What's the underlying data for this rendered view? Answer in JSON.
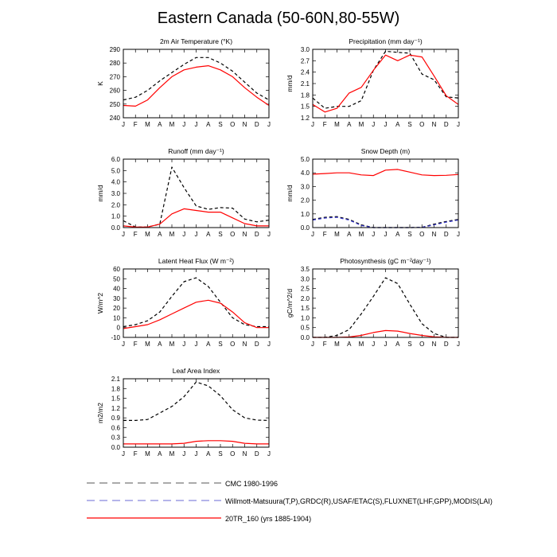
{
  "title": "Eastern Canada (50-60N,80-55W)",
  "colors": {
    "cmc": "#000000",
    "obs": "#3333cc",
    "model": "#ff0000"
  },
  "legend": [
    {
      "label": "CMC 1980-1996",
      "color": "#777777",
      "dash": "dash"
    },
    {
      "label": "Willmott-Matsuura(T,P),GRDC(R),USAF/ETAC(S),FLUXNET(LHF,GPP),MODIS(LAI)",
      "color": "#8888dd",
      "dash": "dash"
    },
    {
      "label": "20TR_160 (yrs 1885-1904)",
      "color": "#ff0000",
      "dash": "solid"
    }
  ],
  "chart_data": [
    {
      "type": "line",
      "title": "2m Air Temperature (°K)",
      "ylabel": "K",
      "categories": [
        "J",
        "F",
        "M",
        "A",
        "M",
        "J",
        "J",
        "A",
        "S",
        "O",
        "N",
        "D",
        "J"
      ],
      "ylim": [
        240,
        290
      ],
      "yticks": [
        240,
        250,
        260,
        270,
        280,
        290
      ],
      "ytick_labels": [
        "240",
        "250",
        "260",
        "270",
        "280",
        "290"
      ],
      "series": [
        {
          "key": "cmc",
          "values": [
            253,
            255,
            260,
            267,
            273,
            279,
            284,
            284,
            280,
            274,
            266,
            258,
            253
          ]
        },
        {
          "key": "model",
          "values": [
            249,
            248.5,
            253,
            262,
            270,
            275,
            277,
            278,
            275,
            270,
            262,
            255,
            249
          ]
        }
      ]
    },
    {
      "type": "line",
      "title": "Precipitation (mm day⁻¹)",
      "ylabel": "mm/d",
      "categories": [
        "J",
        "F",
        "M",
        "A",
        "M",
        "J",
        "J",
        "A",
        "S",
        "O",
        "N",
        "D",
        "J"
      ],
      "ylim": [
        1.2,
        3.0
      ],
      "yticks": [
        1.2,
        1.5,
        1.8,
        2.1,
        2.4,
        2.7,
        3.0
      ],
      "ytick_labels": [
        "1.2",
        "1.5",
        "1.8",
        "2.1",
        "2.4",
        "2.7",
        "3.0"
      ],
      "series": [
        {
          "key": "cmc",
          "values": [
            1.72,
            1.45,
            1.5,
            1.5,
            1.65,
            2.45,
            2.95,
            2.92,
            2.9,
            2.35,
            2.2,
            1.75,
            1.72
          ]
        },
        {
          "key": "model",
          "values": [
            1.55,
            1.35,
            1.45,
            1.85,
            2.0,
            2.45,
            2.85,
            2.7,
            2.85,
            2.8,
            2.3,
            1.78,
            1.55
          ]
        }
      ]
    },
    {
      "type": "line",
      "title": "Runoff (mm day⁻¹)",
      "ylabel": "mm/d",
      "categories": [
        "J",
        "F",
        "M",
        "A",
        "M",
        "J",
        "J",
        "A",
        "S",
        "O",
        "N",
        "D",
        "J"
      ],
      "ylim": [
        0,
        6
      ],
      "yticks": [
        0,
        1,
        2,
        3,
        4,
        5,
        6
      ],
      "ytick_labels": [
        "0.0",
        "1.0",
        "2.0",
        "3.0",
        "4.0",
        "5.0",
        "6.0"
      ],
      "series": [
        {
          "key": "cmc",
          "values": [
            0.6,
            0.05,
            0.05,
            0.3,
            5.3,
            3.5,
            1.9,
            1.6,
            1.75,
            1.7,
            0.75,
            0.5,
            0.65
          ]
        },
        {
          "key": "model",
          "values": [
            0.15,
            0.05,
            0.05,
            0.3,
            1.2,
            1.65,
            1.5,
            1.35,
            1.35,
            0.85,
            0.35,
            0.15,
            0.15
          ]
        }
      ]
    },
    {
      "type": "line",
      "title": "Snow Depth (m)",
      "ylabel": "mm/d",
      "categories": [
        "J",
        "F",
        "M",
        "A",
        "M",
        "J",
        "J",
        "A",
        "S",
        "O",
        "N",
        "D",
        "J"
      ],
      "ylim": [
        0,
        5
      ],
      "yticks": [
        0,
        1,
        2,
        3,
        4,
        5
      ],
      "ytick_labels": [
        "0.0",
        "1.0",
        "2.0",
        "3.0",
        "4.0",
        "5.0"
      ],
      "series": [
        {
          "key": "cmc",
          "values": [
            0.6,
            0.75,
            0.8,
            0.6,
            0.2,
            0,
            0,
            0,
            0,
            0.02,
            0.25,
            0.45,
            0.6
          ]
        },
        {
          "key": "obs",
          "values": [
            0.55,
            0.7,
            0.75,
            0.55,
            0.15,
            0,
            0,
            0,
            0,
            0.02,
            0.2,
            0.4,
            0.55
          ]
        },
        {
          "key": "model",
          "values": [
            3.9,
            3.95,
            4.0,
            4.0,
            3.85,
            3.8,
            4.2,
            4.25,
            4.05,
            3.85,
            3.8,
            3.82,
            3.88
          ]
        }
      ]
    },
    {
      "type": "line",
      "title": "Latent Heat Flux (W m⁻²)",
      "ylabel": "W/m^2",
      "categories": [
        "J",
        "F",
        "M",
        "A",
        "M",
        "J",
        "J",
        "A",
        "S",
        "O",
        "N",
        "D",
        "J"
      ],
      "ylim": [
        -10,
        60
      ],
      "yticks": [
        -10,
        0,
        10,
        20,
        30,
        40,
        50,
        60
      ],
      "ytick_labels": [
        "-10",
        "0",
        "10",
        "20",
        "30",
        "40",
        "50",
        "60"
      ],
      "series": [
        {
          "key": "cmc",
          "values": [
            1,
            3,
            7,
            16,
            32,
            47,
            51,
            42,
            26,
            10,
            3,
            1,
            1
          ]
        },
        {
          "key": "model",
          "values": [
            -1,
            1,
            3,
            8,
            14,
            20,
            26,
            28,
            25,
            16,
            5,
            0,
            0
          ]
        }
      ]
    },
    {
      "type": "line",
      "title": "Photosynthesis (gC m⁻²day⁻¹)",
      "ylabel": "gC/m^2/d",
      "categories": [
        "J",
        "F",
        "M",
        "A",
        "M",
        "J",
        "J",
        "A",
        "S",
        "O",
        "N",
        "D",
        "J"
      ],
      "ylim": [
        0,
        3.5
      ],
      "yticks": [
        0,
        0.5,
        1.0,
        1.5,
        2.0,
        2.5,
        3.0,
        3.5
      ],
      "ytick_labels": [
        "0.0",
        "0.5",
        "1.0",
        "1.5",
        "2.0",
        "2.5",
        "3.0",
        "3.5"
      ],
      "series": [
        {
          "key": "cmc",
          "values": [
            0,
            0,
            0.1,
            0.4,
            1.2,
            2.1,
            3.05,
            2.75,
            1.7,
            0.7,
            0.2,
            0,
            0
          ]
        },
        {
          "key": "model",
          "values": [
            0,
            0,
            0,
            0.02,
            0.1,
            0.25,
            0.35,
            0.32,
            0.2,
            0.1,
            0.03,
            0,
            0
          ]
        }
      ]
    },
    {
      "type": "line",
      "title": "Leaf Area Index",
      "ylabel": "m2/m2",
      "categories": [
        "J",
        "F",
        "M",
        "A",
        "M",
        "J",
        "J",
        "A",
        "S",
        "O",
        "N",
        "D",
        "J"
      ],
      "ylim": [
        0,
        2.1
      ],
      "yticks": [
        0,
        0.3,
        0.6,
        0.9,
        1.2,
        1.5,
        1.8,
        2.1
      ],
      "ytick_labels": [
        "0.0",
        "0.3",
        "0.6",
        "0.9",
        "1.2",
        "1.5",
        "1.8",
        "2.1"
      ],
      "series": [
        {
          "key": "cmc",
          "values": [
            0.82,
            0.82,
            0.85,
            1.05,
            1.25,
            1.55,
            2.0,
            1.88,
            1.58,
            1.15,
            0.9,
            0.83,
            0.82
          ]
        },
        {
          "key": "model",
          "values": [
            0.1,
            0.1,
            0.1,
            0.1,
            0.1,
            0.12,
            0.18,
            0.2,
            0.2,
            0.18,
            0.12,
            0.1,
            0.1
          ]
        }
      ]
    }
  ]
}
